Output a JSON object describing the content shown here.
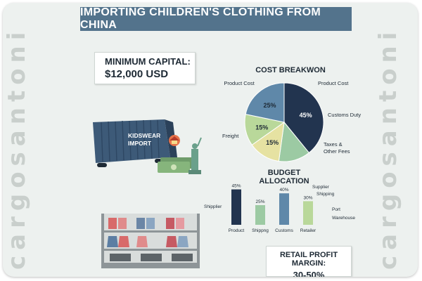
{
  "title": "IMPORTING CHILDREN'S CLOTHING FROM CHINA",
  "watermark": "cargosantoni",
  "capital": {
    "label": "MINIMUM CAPITAL:",
    "value": "$12,000 USD"
  },
  "container_label_line1": "KIDSWEAR",
  "container_label_line2": "IMPORT",
  "retail": {
    "label": "RETAIL PROFIT MARGIN:",
    "value": "30-50%"
  },
  "colors": {
    "banner": "#53738c",
    "navy": "#22344f",
    "steel_blue": "#5f88a9",
    "sage_green": "#9ccaa3",
    "light_green": "#b9d89a",
    "pale_yellow": "#e6e2a2",
    "background": "#edf1ef"
  },
  "chart_data": [
    {
      "type": "pie",
      "title": "COST BREAKWON",
      "slices": [
        {
          "label": "Product Cost",
          "value": 45,
          "value_label": "45%",
          "color": "#22344f"
        },
        {
          "label": "Product Cost",
          "value": 15,
          "value_label": "",
          "color": "#9ccaa3"
        },
        {
          "label": "Customs Duty",
          "value": 15,
          "value_label": "15%",
          "color": "#e6e2a2"
        },
        {
          "label": "Taxes & Other Fees",
          "value": 15,
          "value_label": "15%",
          "color": "#b9d89a"
        },
        {
          "label": "Freight",
          "value": 25,
          "value_label": "25%",
          "color": "#5f88a9"
        }
      ]
    },
    {
      "type": "bar",
      "title": "BUDGET ALLOCATION",
      "categories": [
        "Product",
        "Shippng",
        "Customs",
        "Retailer"
      ],
      "values": [
        45,
        25,
        40,
        30
      ],
      "value_labels": [
        "45%",
        "25%",
        "40%",
        "30%"
      ],
      "colors": [
        "#22344f",
        "#9ccaa3",
        "#5f88a9",
        "#b9d89a"
      ],
      "ylim": [
        0,
        50
      ],
      "annotations": [
        "Shipplier",
        "Supplier",
        "Shipping",
        "Port",
        "Warehouse"
      ]
    }
  ]
}
